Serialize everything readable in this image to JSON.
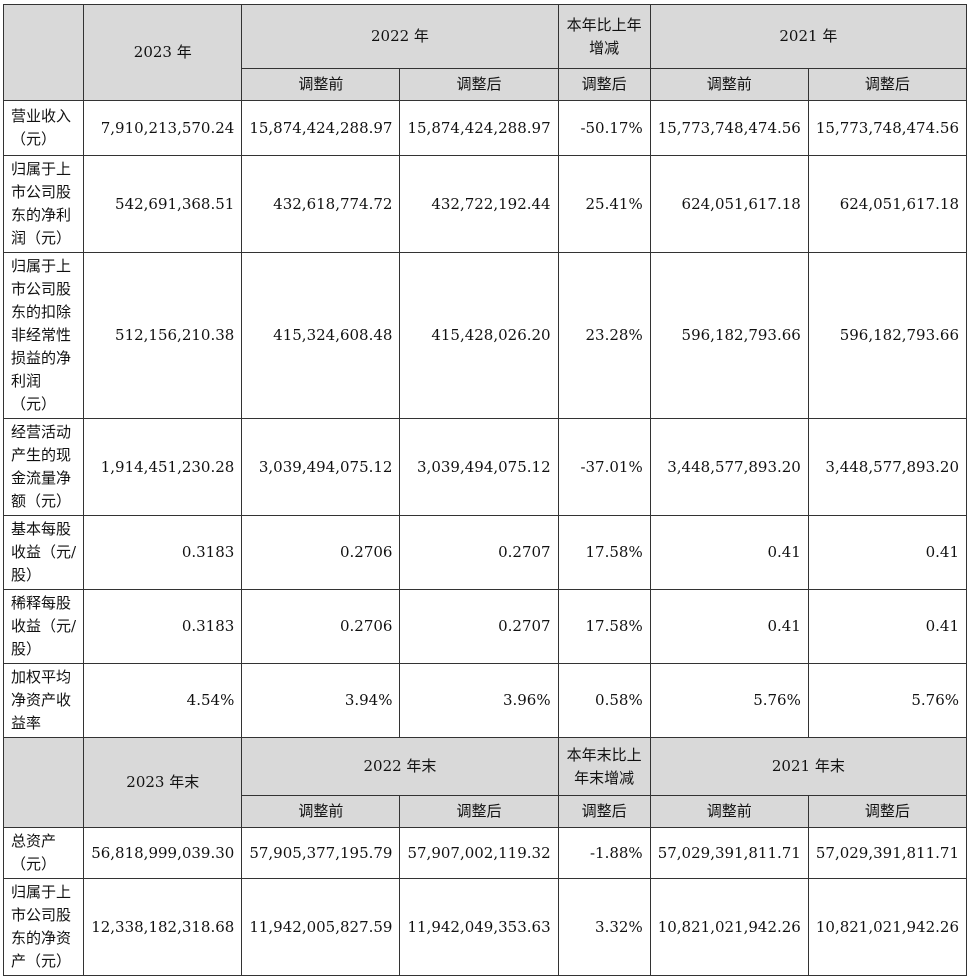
{
  "header1": {
    "year_2023": "2023 年",
    "year_2022": "2022 年",
    "yoy": "本年比上年增减",
    "year_2021": "2021 年",
    "sub_before": "调整前",
    "sub_after": "调整后",
    "sub_yoy_after": "调整后"
  },
  "rows1": [
    {
      "label": "营业收入（元）",
      "v2023": "7,910,213,570.24",
      "v2022_before": "15,874,424,288.97",
      "v2022_after": "15,874,424,288.97",
      "yoy": "-50.17%",
      "v2021_before": "15,773,748,474.56",
      "v2021_after": "15,773,748,474.56"
    },
    {
      "label": "归属于上市公司股东的净利润（元）",
      "v2023": "542,691,368.51",
      "v2022_before": "432,618,774.72",
      "v2022_after": "432,722,192.44",
      "yoy": "25.41%",
      "v2021_before": "624,051,617.18",
      "v2021_after": "624,051,617.18"
    },
    {
      "label": "归属于上市公司股东的扣除非经常性损益的净利润（元）",
      "v2023": "512,156,210.38",
      "v2022_before": "415,324,608.48",
      "v2022_after": "415,428,026.20",
      "yoy": "23.28%",
      "v2021_before": "596,182,793.66",
      "v2021_after": "596,182,793.66"
    },
    {
      "label": "经营活动产生的现金流量净额（元）",
      "v2023": "1,914,451,230.28",
      "v2022_before": "3,039,494,075.12",
      "v2022_after": "3,039,494,075.12",
      "yoy": "-37.01%",
      "v2021_before": "3,448,577,893.20",
      "v2021_after": "3,448,577,893.20"
    },
    {
      "label": "基本每股收益（元/股）",
      "v2023": "0.3183",
      "v2022_before": "0.2706",
      "v2022_after": "0.2707",
      "yoy": "17.58%",
      "v2021_before": "0.41",
      "v2021_after": "0.41"
    },
    {
      "label": "稀释每股收益（元/股）",
      "v2023": "0.3183",
      "v2022_before": "0.2706",
      "v2022_after": "0.2707",
      "yoy": "17.58%",
      "v2021_before": "0.41",
      "v2021_after": "0.41"
    },
    {
      "label": "加权平均净资产收益率",
      "v2023": "4.54%",
      "v2022_before": "3.94%",
      "v2022_after": "3.96%",
      "yoy": "0.58%",
      "v2021_before": "5.76%",
      "v2021_after": "5.76%"
    }
  ],
  "header2": {
    "year_2023": "2023 年末",
    "year_2022": "2022 年末",
    "yoy": "本年末比上年末增减",
    "year_2021": "2021 年末",
    "sub_before": "调整前",
    "sub_after": "调整后",
    "sub_yoy_after": "调整后"
  },
  "rows2": [
    {
      "label": "总资产（元）",
      "v2023": "56,818,999,039.30",
      "v2022_before": "57,905,377,195.79",
      "v2022_after": "57,907,002,119.32",
      "yoy": "-1.88%",
      "v2021_before": "57,029,391,811.71",
      "v2021_after": "57,029,391,811.71"
    },
    {
      "label": "归属于上市公司股东的净资产（元）",
      "v2023": "12,338,182,318.68",
      "v2022_before": "11,942,005,827.59",
      "v2022_after": "11,942,049,353.63",
      "yoy": "3.32%",
      "v2021_before": "10,821,021,942.26",
      "v2021_after": "10,821,021,942.26"
    }
  ]
}
